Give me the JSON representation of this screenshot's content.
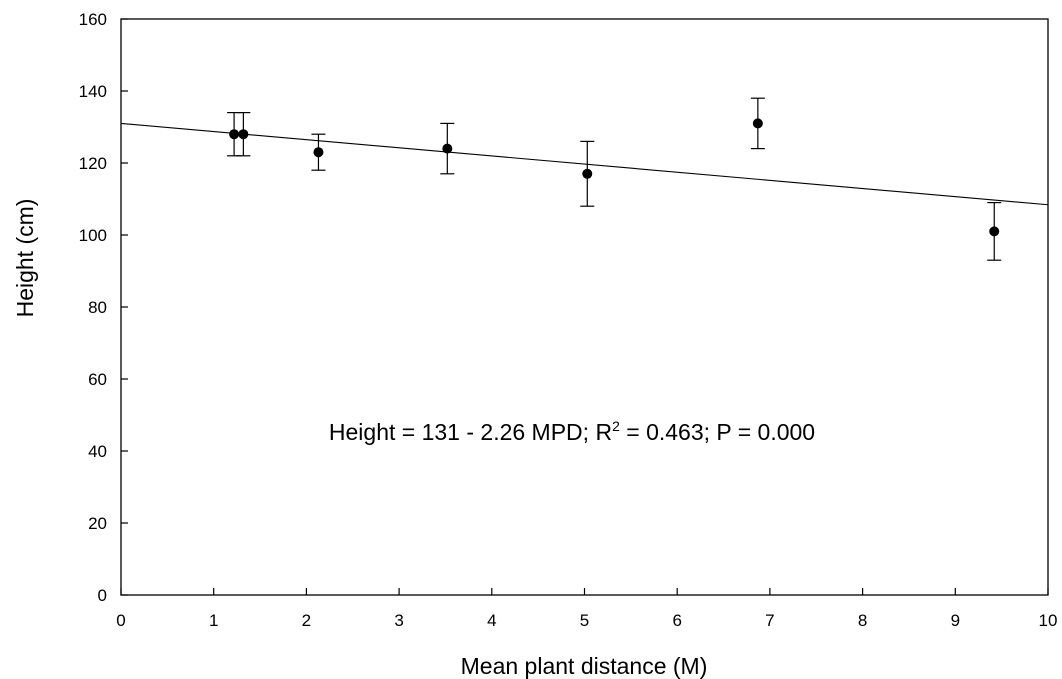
{
  "chart_data": {
    "type": "scatter",
    "xlabel": "Mean plant distance (M)",
    "ylabel": "Height (cm)",
    "xlim": [
      0,
      10
    ],
    "ylim": [
      0,
      160
    ],
    "x_ticks": [
      0,
      1,
      2,
      3,
      4,
      5,
      6,
      7,
      8,
      9,
      10
    ],
    "y_ticks": [
      0,
      20,
      40,
      60,
      80,
      100,
      120,
      140,
      160
    ],
    "grid": false,
    "legend": "none",
    "points": [
      {
        "x": 1.22,
        "y": 128,
        "err_low": 122,
        "err_high": 134
      },
      {
        "x": 1.32,
        "y": 128,
        "err_low": 122,
        "err_high": 134
      },
      {
        "x": 2.13,
        "y": 123,
        "err_low": 118,
        "err_high": 128
      },
      {
        "x": 3.52,
        "y": 124,
        "err_low": 117,
        "err_high": 131
      },
      {
        "x": 5.03,
        "y": 117,
        "err_low": 108,
        "err_high": 126
      },
      {
        "x": 6.87,
        "y": 131,
        "err_low": 124,
        "err_high": 138
      },
      {
        "x": 9.42,
        "y": 101,
        "err_low": 93,
        "err_high": 109
      }
    ],
    "fit_line": {
      "intercept": 131,
      "slope": -2.26
    },
    "annotation": {
      "prefix": "Height = 131 - 2.26 MPD; R",
      "superscript": "2",
      "suffix": " = 0.463; P = 0.000"
    },
    "colors": {
      "marker": "#000000",
      "line": "#000000"
    }
  }
}
